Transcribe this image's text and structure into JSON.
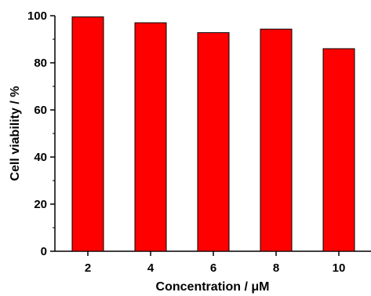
{
  "chart_data": {
    "type": "bar",
    "categories": [
      "2",
      "4",
      "6",
      "8",
      "10"
    ],
    "values": [
      99.5,
      97.0,
      92.8,
      94.3,
      86.0
    ],
    "title": "",
    "xlabel": "Concentration / μM",
    "ylabel": "Cell viability / %",
    "ylim": [
      0,
      100
    ],
    "yticks": [
      "0",
      "20",
      "40",
      "60",
      "80",
      "100"
    ],
    "grid": false,
    "legend": "none",
    "colors": {
      "bar_fill": "#ff0000",
      "bar_stroke": "#000000",
      "axis": "#000000"
    }
  }
}
